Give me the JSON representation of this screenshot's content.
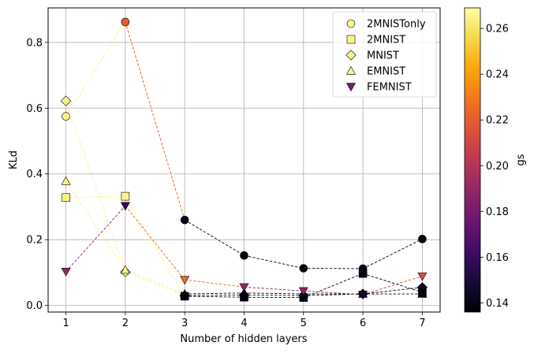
{
  "chart_data": {
    "type": "scatter",
    "xlabel": "Number of hidden layers",
    "ylabel": "KLd",
    "x_ticks": [
      1,
      2,
      3,
      4,
      5,
      6,
      7
    ],
    "y_ticks": [
      0.0,
      0.2,
      0.4,
      0.6,
      0.8
    ],
    "xlim": [
      0.7,
      7.3
    ],
    "ylim": [
      -0.02,
      0.905
    ],
    "grid": true,
    "legend_position": "top-right",
    "colorbar": {
      "label": "gs",
      "min": 0.136,
      "max": 0.269,
      "ticks": [
        0.14,
        0.16,
        0.18,
        0.2,
        0.22,
        0.24,
        0.26
      ],
      "colormap": "inferno"
    },
    "series": [
      {
        "name": "2MNISTonly",
        "marker": "circle",
        "x": [
          1,
          2,
          3,
          4,
          5,
          6,
          7
        ],
        "y": [
          0.575,
          0.862,
          0.26,
          0.152,
          0.113,
          0.112,
          0.202
        ],
        "gs": [
          0.265,
          0.22,
          0.14,
          0.14,
          0.14,
          0.14,
          0.14
        ]
      },
      {
        "name": "2MNIST",
        "marker": "square",
        "x": [
          1,
          2,
          3,
          4,
          5,
          6,
          7
        ],
        "y": [
          0.328,
          0.332,
          0.028,
          0.025,
          0.024,
          0.097,
          0.04
        ],
        "gs": [
          0.265,
          0.265,
          0.14,
          0.14,
          0.14,
          0.14,
          0.14
        ]
      },
      {
        "name": "MNIST",
        "marker": "diamond",
        "x": [
          1,
          2,
          3,
          4,
          5,
          6,
          7
        ],
        "y": [
          0.622,
          0.102,
          0.03,
          0.032,
          0.03,
          0.035,
          0.055
        ],
        "gs": [
          0.265,
          0.265,
          0.14,
          0.14,
          0.14,
          0.14,
          0.14
        ]
      },
      {
        "name": "EMNIST",
        "marker": "triangle-up",
        "x": [
          1,
          2,
          3,
          4,
          5,
          6,
          7
        ],
        "y": [
          0.378,
          0.108,
          0.035,
          0.038,
          0.035,
          0.035,
          0.035
        ],
        "gs": [
          0.265,
          0.265,
          0.14,
          0.14,
          0.14,
          0.14,
          0.14
        ]
      },
      {
        "name": "FEMNIST",
        "marker": "triangle-down",
        "x": [
          1,
          2,
          3,
          4,
          5,
          6,
          7
        ],
        "y": [
          0.103,
          0.303,
          0.078,
          0.056,
          0.044,
          0.033,
          0.089
        ],
        "gs": [
          0.19,
          0.16,
          0.225,
          0.19,
          0.19,
          0.15,
          0.215
        ]
      }
    ]
  }
}
